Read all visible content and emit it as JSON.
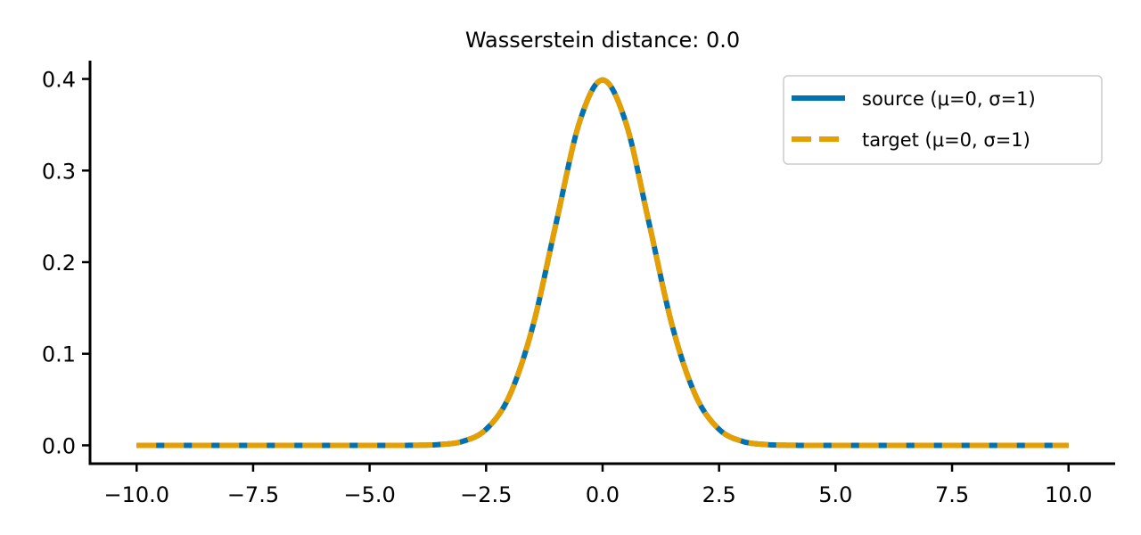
{
  "chart_data": {
    "type": "line",
    "title": "Wasserstein distance: 0.0",
    "xlabel": "",
    "ylabel": "",
    "xlim": [
      -11.0,
      11.0
    ],
    "ylim": [
      -0.02,
      0.42
    ],
    "xticks": [
      -10.0,
      -7.5,
      -5.0,
      -2.5,
      0.0,
      2.5,
      5.0,
      7.5,
      10.0
    ],
    "xtick_labels": [
      "−10.0",
      "−7.5",
      "−5.0",
      "−2.5",
      "0.0",
      "2.5",
      "5.0",
      "7.5",
      "10.0"
    ],
    "yticks": [
      0.0,
      0.1,
      0.2,
      0.3,
      0.4
    ],
    "ytick_labels": [
      "0.0",
      "0.1",
      "0.2",
      "0.3",
      "0.4"
    ],
    "grid": false,
    "legend_position": "top-right",
    "series": [
      {
        "name": "source (μ=0, σ=1)",
        "color": "#0072B2",
        "style": "solid",
        "x": [
          -10.0,
          -5.0,
          -4.0,
          -3.5,
          -3.0,
          -2.5,
          -2.0,
          -1.5,
          -1.0,
          -0.5,
          0.0,
          0.5,
          1.0,
          1.5,
          2.0,
          2.5,
          3.0,
          3.5,
          4.0,
          5.0,
          10.0
        ],
        "y": [
          0.0,
          0.0,
          0.0001,
          0.0009,
          0.0044,
          0.0175,
          0.054,
          0.1295,
          0.242,
          0.3521,
          0.3989,
          0.3521,
          0.242,
          0.1295,
          0.054,
          0.0175,
          0.0044,
          0.0009,
          0.0001,
          0.0,
          0.0
        ]
      },
      {
        "name": "target (μ=0, σ=1)",
        "color": "#E69F00",
        "style": "dashed",
        "x": [
          -10.0,
          -5.0,
          -4.0,
          -3.5,
          -3.0,
          -2.5,
          -2.0,
          -1.5,
          -1.0,
          -0.5,
          0.0,
          0.5,
          1.0,
          1.5,
          2.0,
          2.5,
          3.0,
          3.5,
          4.0,
          5.0,
          10.0
        ],
        "y": [
          0.0,
          0.0,
          0.0001,
          0.0009,
          0.0044,
          0.0175,
          0.054,
          0.1295,
          0.242,
          0.3521,
          0.3989,
          0.3521,
          0.242,
          0.1295,
          0.054,
          0.0175,
          0.0044,
          0.0009,
          0.0001,
          0.0,
          0.0
        ]
      }
    ]
  }
}
